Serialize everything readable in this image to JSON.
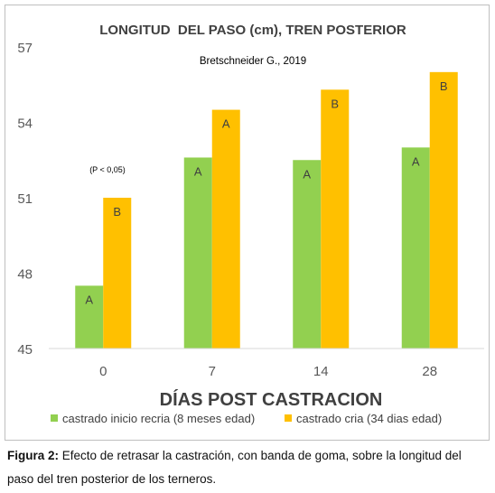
{
  "chart_data": {
    "type": "bar",
    "title": "LONGITUD  DEL PASO (cm), TREN POSTERIOR",
    "source_note": "Bretschneider G., 2019",
    "significance_note": "(P < 0,05)",
    "xlabel": "DÍAS POST CASTRACION",
    "ylabel": "",
    "ylim": [
      45,
      57
    ],
    "yticks": [
      "45",
      "48",
      "51",
      "54",
      "57"
    ],
    "categories": [
      "0",
      "7",
      "14",
      "28"
    ],
    "grid": false,
    "legend_position": "bottom",
    "series": [
      {
        "name": "castrado inicio recria (8 meses edad)",
        "color": "#92d050",
        "values": [
          47.5,
          52.6,
          52.5,
          53.0
        ],
        "labels": [
          "A",
          "A",
          "A",
          "A"
        ]
      },
      {
        "name": "castrado cria (34 dias edad)",
        "color": "#ffc000",
        "values": [
          51.0,
          54.5,
          55.3,
          56.0
        ],
        "labels": [
          "B",
          "A",
          "B",
          "B"
        ]
      }
    ]
  },
  "caption": {
    "label": "Figura 2:",
    "text": " Efecto de retrasar la castración, con banda de goma, sobre la longitud del paso del tren posterior de los terneros."
  }
}
